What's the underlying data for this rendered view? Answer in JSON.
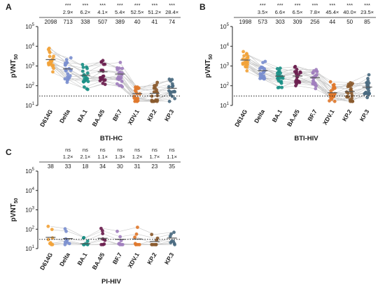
{
  "colors": {
    "D614G": "#f2a33a",
    "Delta": "#7b8fcf",
    "BA.1": "#1a8f86",
    "BA.4/5": "#6b1f4f",
    "BF.7": "#a17fbe",
    "XDV.1": "#e0782c",
    "KP.2": "#8a5a2e",
    "KP.3": "#4a6a80",
    "line": "#c8c8c8",
    "threshold": "#222222"
  },
  "chart_data": [
    {
      "panel_label": "A",
      "type": "scatter",
      "xlabel": "BTI-HC",
      "ylabel_main": "pVNT",
      "ylabel_sub": "50",
      "y_scale": "log",
      "ylim": [
        10,
        100000
      ],
      "y_tick_labels": [
        {
          "base": "10",
          "exp": "1"
        },
        {
          "base": "10",
          "exp": "2"
        },
        {
          "base": "10",
          "exp": "3"
        },
        {
          "base": "10",
          "exp": "4"
        },
        {
          "base": "10",
          "exp": "5"
        }
      ],
      "threshold": 30,
      "categories": [
        "D614G",
        "Delta",
        "BA.1",
        "BA.4/5",
        "BF.7",
        "XDV.1",
        "KP.2",
        "KP.3"
      ],
      "significance": [
        "",
        "***",
        "***",
        "***",
        "***",
        "***",
        "***",
        "***"
      ],
      "fold_change": [
        "",
        "2.9×",
        "6.2×",
        "4.1×",
        "5.4×",
        "52.5×",
        "51.2×",
        "28.4×"
      ],
      "gmt": [
        "2098",
        "713",
        "338",
        "507",
        "389",
        "40",
        "41",
        "74"
      ],
      "n_subjects": 20
    },
    {
      "panel_label": "B",
      "type": "scatter",
      "xlabel": "BTI-HIV",
      "ylabel_main": "pVNT",
      "ylabel_sub": "50",
      "y_scale": "log",
      "ylim": [
        10,
        100000
      ],
      "y_tick_labels": [
        {
          "base": "10",
          "exp": "1"
        },
        {
          "base": "10",
          "exp": "2"
        },
        {
          "base": "10",
          "exp": "3"
        },
        {
          "base": "10",
          "exp": "4"
        },
        {
          "base": "10",
          "exp": "5"
        }
      ],
      "threshold": 30,
      "categories": [
        "D614G",
        "Delta",
        "BA.1",
        "BA.4/5",
        "BF.7",
        "XDV.1",
        "KP.2",
        "KP.3"
      ],
      "significance": [
        "",
        "***",
        "***",
        "***",
        "***",
        "***",
        "***",
        "***"
      ],
      "fold_change": [
        "",
        "3.5×",
        "6.6×",
        "6.5×",
        "7.8×",
        "45.4×",
        "40.0×",
        "23.5×"
      ],
      "gmt": [
        "1998",
        "573",
        "303",
        "309",
        "256",
        "44",
        "50",
        "85"
      ],
      "n_subjects": 22
    },
    {
      "panel_label": "C",
      "type": "scatter",
      "xlabel": "PI-HIV",
      "ylabel_main": "pVNT",
      "ylabel_sub": "50",
      "y_scale": "log",
      "ylim": [
        10,
        100000
      ],
      "y_tick_labels": [
        {
          "base": "10",
          "exp": "1"
        },
        {
          "base": "10",
          "exp": "2"
        },
        {
          "base": "10",
          "exp": "3"
        },
        {
          "base": "10",
          "exp": "4"
        },
        {
          "base": "10",
          "exp": "5"
        }
      ],
      "threshold": 30,
      "categories": [
        "D614G",
        "Delta",
        "BA.1",
        "BA.4/5",
        "BF.7",
        "XDV.1",
        "KP.2",
        "KP.3"
      ],
      "significance": [
        "",
        "ns",
        "ns",
        "ns",
        "ns",
        "ns",
        "ns",
        "ns"
      ],
      "fold_change": [
        "",
        "1.2×",
        "2.1×",
        "1.1×",
        "1.3×",
        "1.2×",
        "1.7×",
        "1.1×"
      ],
      "gmt": [
        "38",
        "33",
        "18",
        "34",
        "30",
        "31",
        "23",
        "35"
      ],
      "n_subjects": 8
    }
  ]
}
